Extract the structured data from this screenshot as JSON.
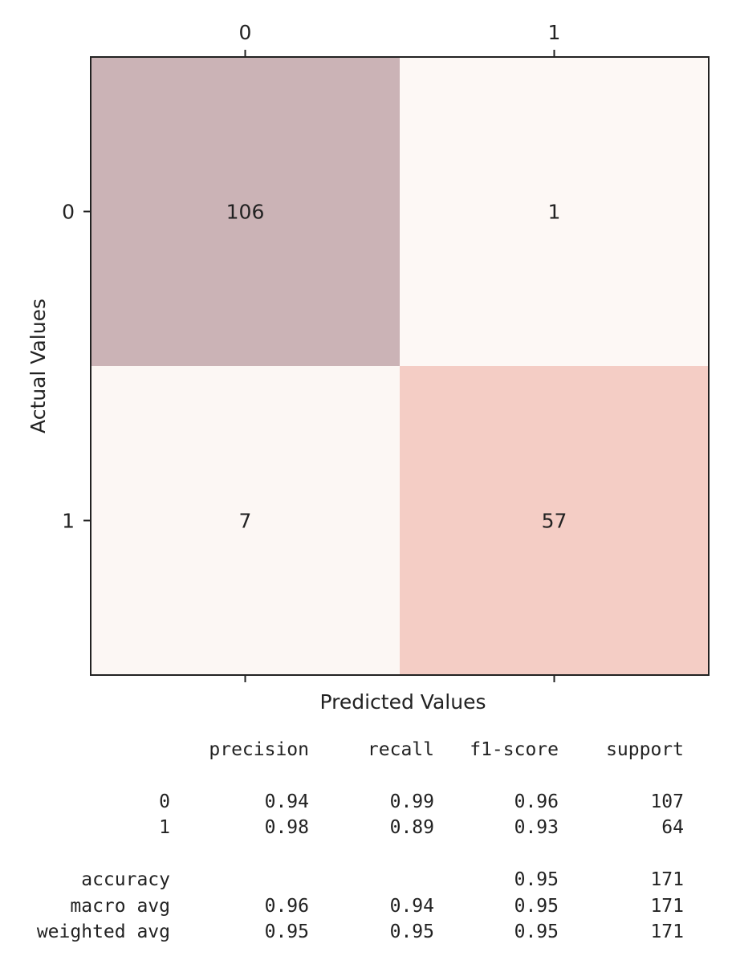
{
  "chart_data": {
    "type": "heatmap",
    "x_categories": [
      "0",
      "1"
    ],
    "y_categories": [
      "0",
      "1"
    ],
    "xlabel": "Predicted Values",
    "ylabel": "Actual Values",
    "values": [
      [
        106,
        1
      ],
      [
        7,
        57
      ]
    ],
    "cell_colors": [
      [
        "#cbb3b6",
        "#fdf8f5"
      ],
      [
        "#fcf7f4",
        "#f4cdc5"
      ]
    ],
    "x_tick_position": "top",
    "grid": false
  },
  "report": {
    "headers": [
      "precision",
      "recall",
      "f1-score",
      "support"
    ],
    "rows": [
      {
        "label": "0",
        "precision": "0.94",
        "recall": "0.99",
        "f1": "0.96",
        "support": "107"
      },
      {
        "label": "1",
        "precision": "0.98",
        "recall": "0.89",
        "f1": "0.93",
        "support": "64"
      },
      {
        "label": "accuracy",
        "precision": "",
        "recall": "",
        "f1": "0.95",
        "support": "171"
      },
      {
        "label": "macro avg",
        "precision": "0.96",
        "recall": "0.94",
        "f1": "0.95",
        "support": "171"
      },
      {
        "label": "weighted avg",
        "precision": "0.95",
        "recall": "0.95",
        "f1": "0.95",
        "support": "171"
      }
    ]
  }
}
